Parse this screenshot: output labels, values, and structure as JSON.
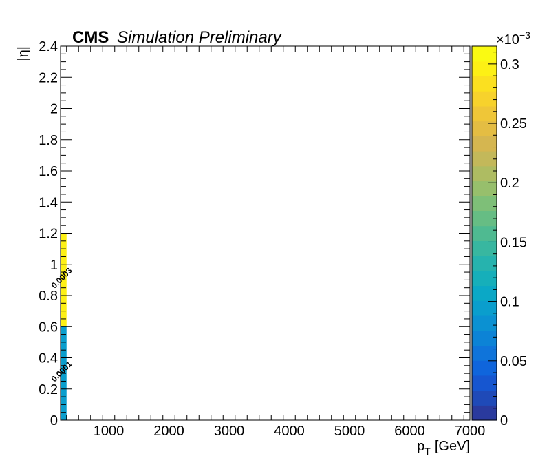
{
  "header": {
    "experiment": "CMS",
    "label": "Simulation Preliminary"
  },
  "chart_data": {
    "type": "heatmap",
    "xlabel": {
      "main": "p",
      "sub": "T",
      "unit": "[GeV]"
    },
    "ylabel": "|η|",
    "xlim": [
      200,
      7000
    ],
    "ylim": [
      0,
      2.4
    ],
    "xticks": [
      1000,
      2000,
      3000,
      4000,
      5000,
      6000,
      7000
    ],
    "yticks": [
      0,
      0.2,
      0.4,
      0.6,
      0.8,
      1,
      1.2,
      1.4,
      1.6,
      1.8,
      2,
      2.2,
      2.4
    ],
    "bins": [
      {
        "x": [
          200,
          300
        ],
        "y": [
          0,
          0.6
        ],
        "value": 0.0001,
        "label": "0.0001"
      },
      {
        "x": [
          200,
          300
        ],
        "y": [
          0.6,
          1.2
        ],
        "value": 0.0003,
        "label": "0.0003"
      }
    ],
    "colorbar": {
      "zlim": [
        0,
        0.000315
      ],
      "multiplier": "×10",
      "exponent": "−3",
      "ticks": [
        {
          "value": 0,
          "label": "0"
        },
        {
          "value": 5e-05,
          "label": "0.05"
        },
        {
          "value": 0.0001,
          "label": "0.1"
        },
        {
          "value": 0.00015,
          "label": "0.15"
        },
        {
          "value": 0.0002,
          "label": "0.2"
        },
        {
          "value": 0.00025,
          "label": "0.25"
        },
        {
          "value": 0.0003,
          "label": "0.3"
        }
      ],
      "palette": [
        "#2a3a9e",
        "#1f4ab8",
        "#1656d0",
        "#0f65dc",
        "#0f74da",
        "#0c83d6",
        "#0b91d2",
        "#0a9ecd",
        "#0ba8c6",
        "#16afba",
        "#26b3ae",
        "#38b7a0",
        "#4fba91",
        "#66bd84",
        "#7ebf78",
        "#97bf6c",
        "#aebc62",
        "#c3b85a",
        "#d5b650",
        "#e4bd43",
        "#efc638",
        "#f7d22c",
        "#fbe020",
        "#fdf015",
        "#fafa12"
      ]
    }
  }
}
